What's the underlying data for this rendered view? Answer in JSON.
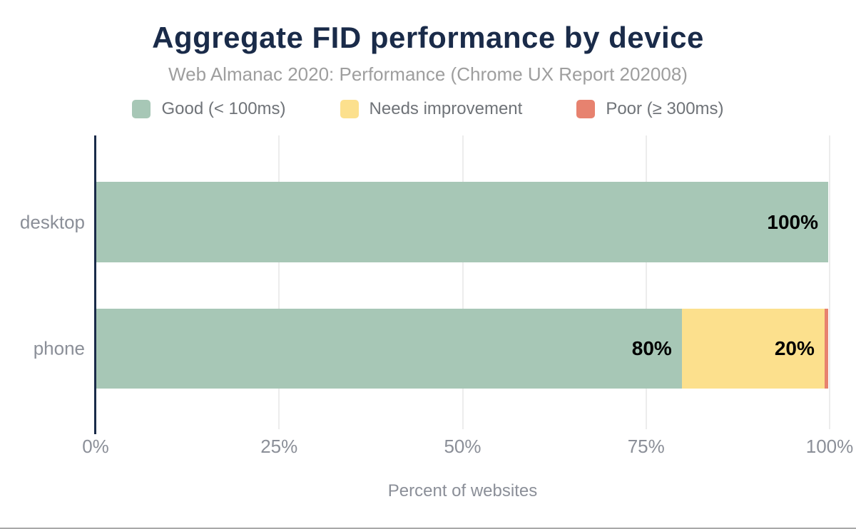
{
  "figure": {
    "title": "Aggregate FID performance by device",
    "subtitle": "Web Almanac 2020: Performance (Chrome UX Report 202008)"
  },
  "chart_data": {
    "type": "bar",
    "orientation": "horizontal",
    "stacked": true,
    "title": "Aggregate FID performance by device",
    "subtitle": "Web Almanac 2020: Performance (Chrome UX Report 202008)",
    "categories": [
      "desktop",
      "phone"
    ],
    "series": [
      {
        "name": "Good (< 100ms)",
        "color": "#a7c7b6",
        "values": [
          100,
          80
        ],
        "data_labels": [
          "100%",
          "80%"
        ]
      },
      {
        "name": "Needs improvement",
        "color": "#fce08d",
        "values": [
          0,
          19.5
        ],
        "data_labels": [
          "",
          "20%"
        ]
      },
      {
        "name": "Poor (≥ 300ms)",
        "color": "#e7826f",
        "values": [
          0,
          0.5
        ],
        "data_labels": [
          "",
          ""
        ]
      }
    ],
    "xlabel": "Percent of websites",
    "xlim": [
      0,
      100
    ],
    "x_ticks": [
      {
        "value": 0,
        "label": "0%"
      },
      {
        "value": 25,
        "label": "25%"
      },
      {
        "value": 50,
        "label": "50%"
      },
      {
        "value": 75,
        "label": "75%"
      },
      {
        "value": 100,
        "label": "100%"
      }
    ],
    "grid": "vertical",
    "legend_position": "top"
  },
  "colors": {
    "title": "#1a2b49",
    "subtitle": "#9e9e9e",
    "axis_line": "#1a2b49",
    "gridline": "#ececec",
    "tick_text": "#8b8f98",
    "legend_text": "#6f7378",
    "data_label": "#000000",
    "good": "#a7c7b6",
    "needs_improvement": "#fce08d",
    "poor": "#e7826f",
    "bottom_rule": "#a9a9a9"
  }
}
